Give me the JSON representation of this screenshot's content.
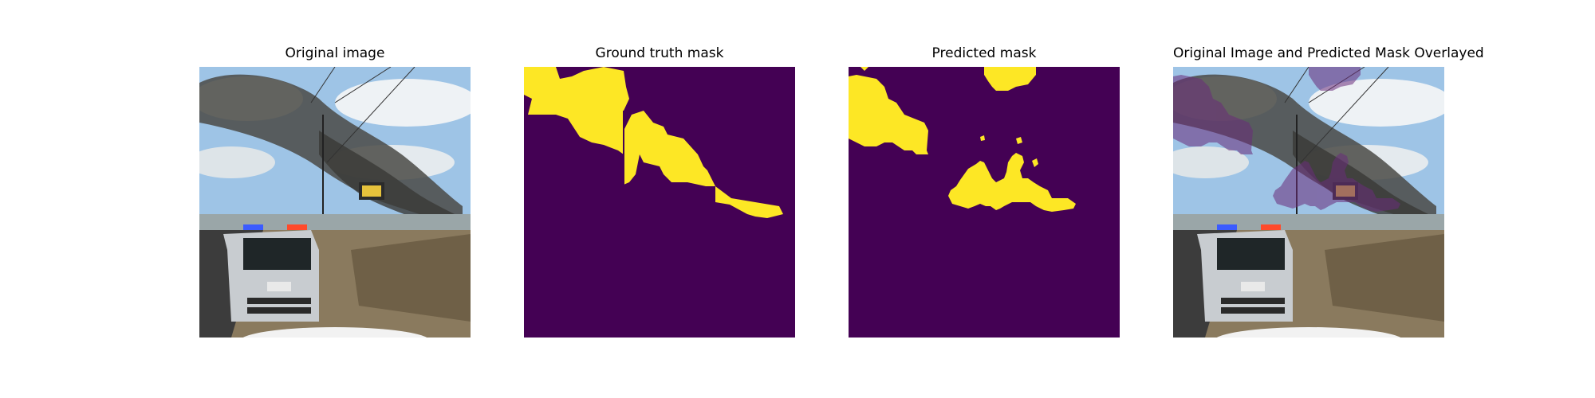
{
  "panels": [
    {
      "title": "Original image"
    },
    {
      "title": "Ground truth mask"
    },
    {
      "title": "Predicted mask"
    },
    {
      "title": "Original Image and Predicted Mask Overlayed"
    }
  ],
  "colors": {
    "mask_background": "#440154",
    "mask_foreground": "#fde725",
    "overlay_tint": "#6a2c7a",
    "sky": "#9ec4e6",
    "smoke": "#4a4a45",
    "road": "#3c3c3c",
    "brush": "#8a7a5e",
    "vehicle_body": "#c8ccd0"
  }
}
